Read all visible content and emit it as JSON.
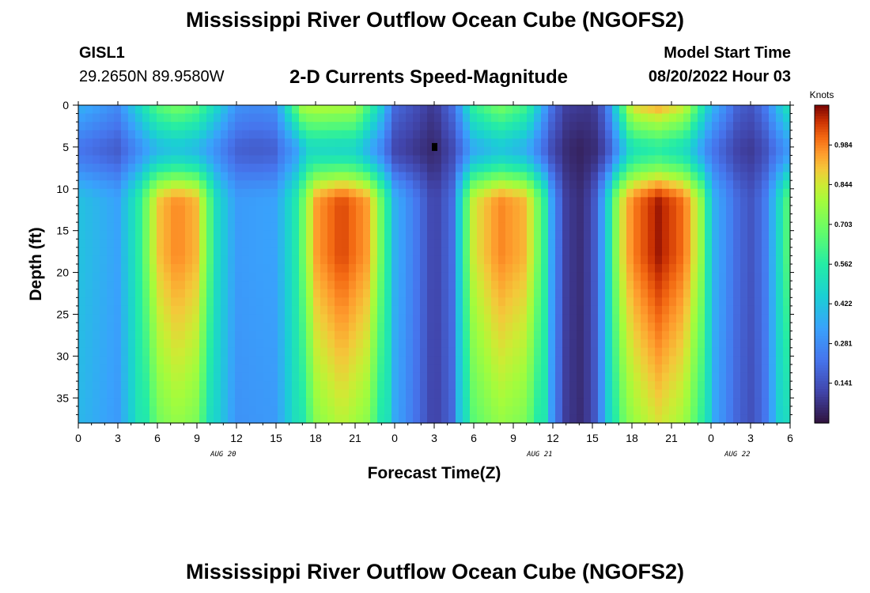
{
  "header": {
    "title": "Mississippi River Outflow Ocean Cube (NGOFS2)",
    "station": "GISL1",
    "coords": "29.2650N  89.9580W",
    "subtitle": "2-D Currents Speed-Magnitude",
    "model_label": "Model Start Time",
    "model_date": "08/20/2022 Hour 03"
  },
  "footer": {
    "title": "Mississippi River Outflow Ocean Cube (NGOFS2)"
  },
  "chart_data": {
    "type": "heatmap",
    "title": "2-D Currents Speed-Magnitude",
    "xlabel": "Forecast Time(Z)",
    "ylabel": "Depth (ft)",
    "x_range_hours": [
      0,
      54
    ],
    "x_tick_labels": [
      "0",
      "3",
      "6",
      "9",
      "12",
      "15",
      "18",
      "21",
      "0",
      "3",
      "6",
      "9",
      "12",
      "15",
      "18",
      "21",
      "0",
      "3",
      "6"
    ],
    "date_labels": [
      "AUG 20",
      "AUG 21",
      "AUG 22"
    ],
    "date_label_hours": [
      11,
      35,
      50
    ],
    "y_range": [
      0,
      38
    ],
    "y_ticks": [
      0,
      5,
      10,
      15,
      20,
      25,
      30,
      35
    ],
    "y_reversed": true,
    "colorbar": {
      "label": "Knots",
      "min": 0.0,
      "max": 1.125,
      "tick_labels": [
        "0.984",
        "0.844",
        "0.703",
        "0.562",
        "0.422",
        "0.281",
        "0.141"
      ],
      "colormap": "turbo"
    },
    "surface_speed": [
      [
        0,
        0.38
      ],
      [
        3,
        0.28
      ],
      [
        6,
        0.66
      ],
      [
        7.5,
        0.72
      ],
      [
        9,
        0.66
      ],
      [
        12,
        0.3
      ],
      [
        13.5,
        0.28
      ],
      [
        15,
        0.3
      ],
      [
        17,
        0.8
      ],
      [
        18,
        0.82
      ],
      [
        21,
        0.8
      ],
      [
        23,
        0.45
      ],
      [
        24,
        0.2
      ],
      [
        26,
        0.12
      ],
      [
        27,
        0.08
      ],
      [
        28.5,
        0.22
      ],
      [
        30,
        0.6
      ],
      [
        32,
        0.72
      ],
      [
        34,
        0.62
      ],
      [
        36,
        0.2
      ],
      [
        37,
        0.1
      ],
      [
        39,
        0.08
      ],
      [
        40,
        0.2
      ],
      [
        42,
        0.88
      ],
      [
        44,
        0.95
      ],
      [
        46,
        0.85
      ],
      [
        48,
        0.4
      ],
      [
        50,
        0.18
      ],
      [
        51,
        0.15
      ],
      [
        52,
        0.22
      ],
      [
        53,
        0.4
      ],
      [
        54,
        0.55
      ]
    ],
    "deep_speed": [
      [
        0,
        0.42
      ],
      [
        3,
        0.34
      ],
      [
        4.5,
        0.55
      ],
      [
        6,
        0.9
      ],
      [
        7.5,
        0.98
      ],
      [
        9,
        0.92
      ],
      [
        10.5,
        0.5
      ],
      [
        12,
        0.32
      ],
      [
        15,
        0.34
      ],
      [
        16.5,
        0.55
      ],
      [
        18,
        0.95
      ],
      [
        20,
        1.05
      ],
      [
        22,
        0.95
      ],
      [
        23.5,
        0.55
      ],
      [
        24,
        0.38
      ],
      [
        26,
        0.2
      ],
      [
        27,
        0.1
      ],
      [
        28.5,
        0.22
      ],
      [
        29,
        0.5
      ],
      [
        30,
        0.85
      ],
      [
        32,
        0.98
      ],
      [
        34,
        0.92
      ],
      [
        35.5,
        0.55
      ],
      [
        36,
        0.3
      ],
      [
        37,
        0.1
      ],
      [
        38,
        0.06
      ],
      [
        39,
        0.12
      ],
      [
        40,
        0.4
      ],
      [
        41,
        0.82
      ],
      [
        42,
        0.98
      ],
      [
        44,
        1.1
      ],
      [
        46,
        1.0
      ],
      [
        47.5,
        0.7
      ],
      [
        48,
        0.4
      ],
      [
        50,
        0.2
      ],
      [
        51,
        0.15
      ],
      [
        52,
        0.22
      ],
      [
        53,
        0.45
      ],
      [
        54,
        0.7
      ]
    ],
    "marker": {
      "hour": 27,
      "depth": 5
    }
  }
}
